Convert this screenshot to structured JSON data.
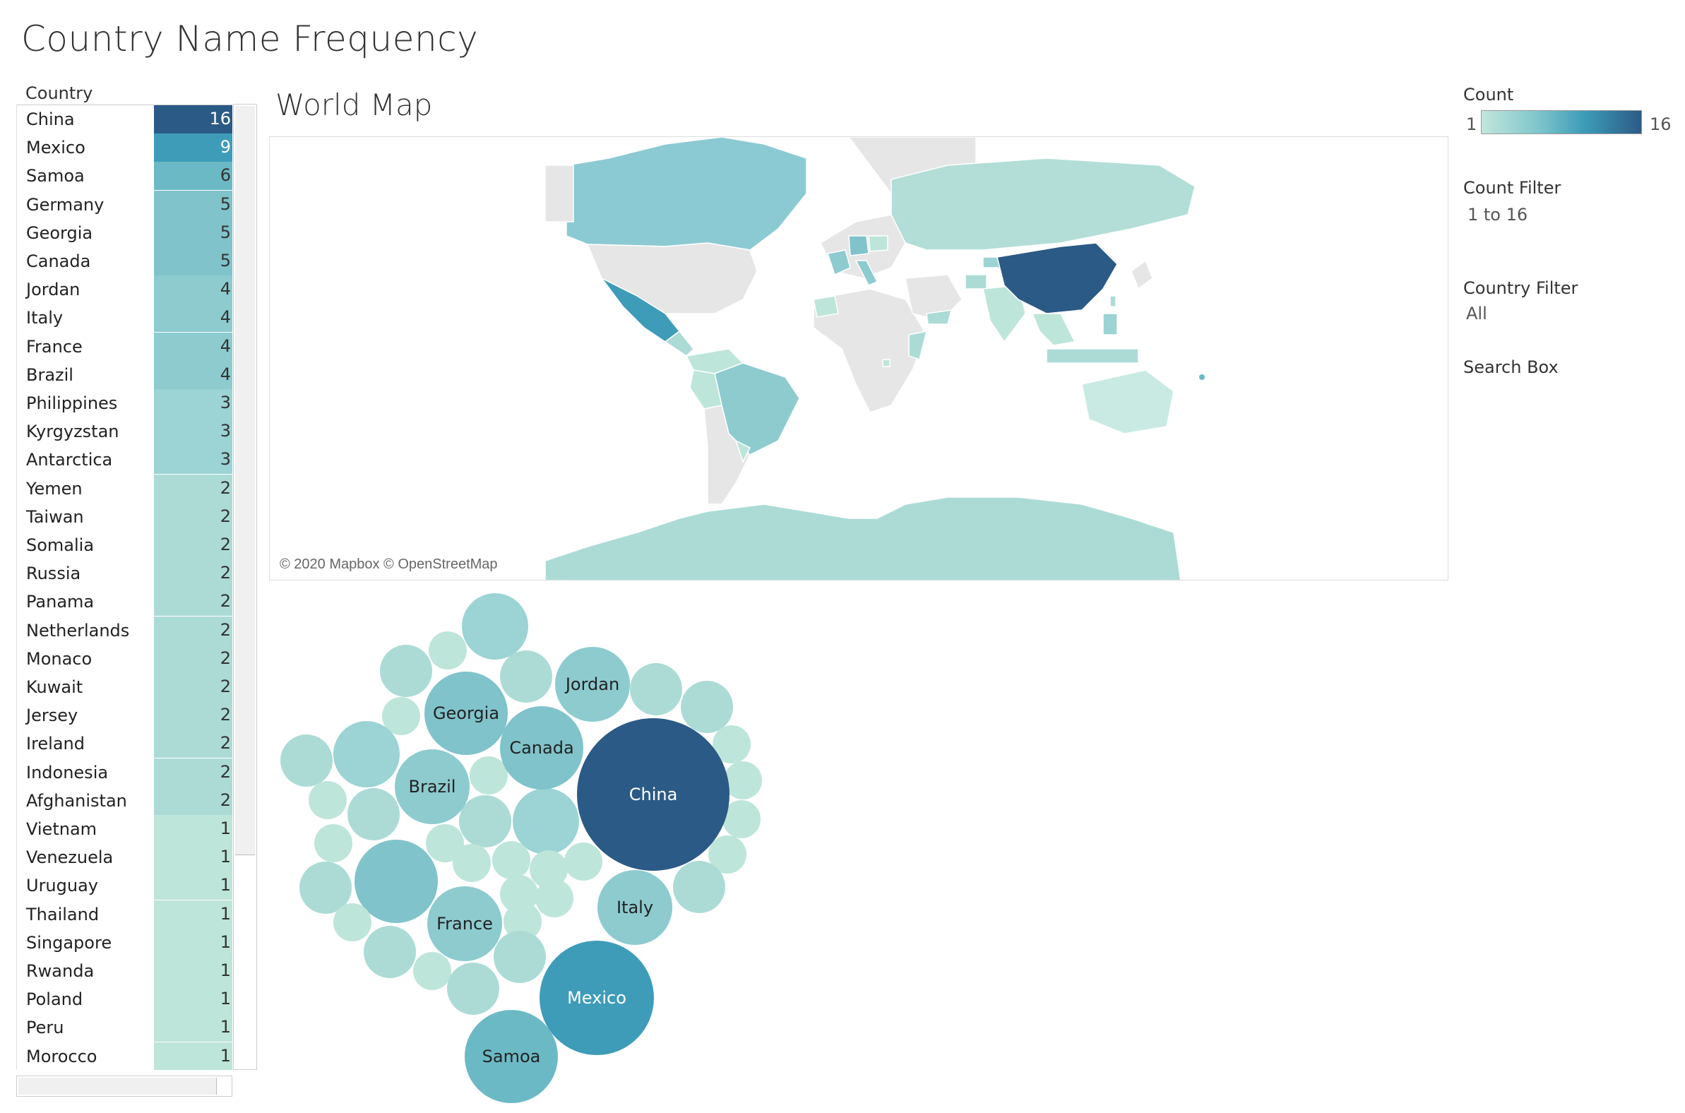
{
  "title": "Country Name Frequency",
  "table": {
    "header": "Country",
    "rows": [
      {
        "name": "China",
        "count": 16,
        "color": "#2c5a86",
        "text": "#ffffff"
      },
      {
        "name": "Mexico",
        "count": 9,
        "color": "#3e9cb9",
        "text": "#ffffff"
      },
      {
        "name": "Samoa",
        "count": 6,
        "color": "#6cb9c6",
        "text": "#333333"
      },
      {
        "name": "Germany",
        "count": 5,
        "color": "#80c3cb",
        "text": "#333333"
      },
      {
        "name": "Georgia",
        "count": 5,
        "color": "#80c3cb",
        "text": "#333333"
      },
      {
        "name": "Canada",
        "count": 5,
        "color": "#80c3cb",
        "text": "#333333"
      },
      {
        "name": "Jordan",
        "count": 4,
        "color": "#8dcbcf",
        "text": "#333333"
      },
      {
        "name": "Italy",
        "count": 4,
        "color": "#8dcbcf",
        "text": "#333333"
      },
      {
        "name": "France",
        "count": 4,
        "color": "#8dcbcf",
        "text": "#333333"
      },
      {
        "name": "Brazil",
        "count": 4,
        "color": "#8dcbcf",
        "text": "#333333"
      },
      {
        "name": "Philippines",
        "count": 3,
        "color": "#9cd3d4",
        "text": "#333333"
      },
      {
        "name": "Kyrgyzstan",
        "count": 3,
        "color": "#9cd3d4",
        "text": "#333333"
      },
      {
        "name": "Antarctica",
        "count": 3,
        "color": "#9cd3d4",
        "text": "#333333"
      },
      {
        "name": "Yemen",
        "count": 2,
        "color": "#acdbd6",
        "text": "#333333"
      },
      {
        "name": "Taiwan",
        "count": 2,
        "color": "#acdbd6",
        "text": "#333333"
      },
      {
        "name": "Somalia",
        "count": 2,
        "color": "#acdbd6",
        "text": "#333333"
      },
      {
        "name": "Russia",
        "count": 2,
        "color": "#acdbd6",
        "text": "#333333"
      },
      {
        "name": "Panama",
        "count": 2,
        "color": "#acdbd6",
        "text": "#333333"
      },
      {
        "name": "Netherlands",
        "count": 2,
        "color": "#acdbd6",
        "text": "#333333"
      },
      {
        "name": "Monaco",
        "count": 2,
        "color": "#acdbd6",
        "text": "#333333"
      },
      {
        "name": "Kuwait",
        "count": 2,
        "color": "#acdbd6",
        "text": "#333333"
      },
      {
        "name": "Jersey",
        "count": 2,
        "color": "#acdbd6",
        "text": "#333333"
      },
      {
        "name": "Ireland",
        "count": 2,
        "color": "#acdbd6",
        "text": "#333333"
      },
      {
        "name": "Indonesia",
        "count": 2,
        "color": "#acdbd6",
        "text": "#333333"
      },
      {
        "name": "Afghanistan",
        "count": 2,
        "color": "#acdbd6",
        "text": "#333333"
      },
      {
        "name": "Vietnam",
        "count": 1,
        "color": "#bee5da",
        "text": "#333333"
      },
      {
        "name": "Venezuela",
        "count": 1,
        "color": "#bee5da",
        "text": "#333333"
      },
      {
        "name": "Uruguay",
        "count": 1,
        "color": "#bee5da",
        "text": "#333333"
      },
      {
        "name": "Thailand",
        "count": 1,
        "color": "#bee5da",
        "text": "#333333"
      },
      {
        "name": "Singapore",
        "count": 1,
        "color": "#bee5da",
        "text": "#333333"
      },
      {
        "name": "Rwanda",
        "count": 1,
        "color": "#bee5da",
        "text": "#333333"
      },
      {
        "name": "Poland",
        "count": 1,
        "color": "#bee5da",
        "text": "#333333"
      },
      {
        "name": "Peru",
        "count": 1,
        "color": "#bee5da",
        "text": "#333333"
      },
      {
        "name": "Morocco",
        "count": 1,
        "color": "#bee5da",
        "text": "#333333"
      }
    ]
  },
  "map": {
    "title": "World Map",
    "attribution": "© 2020 Mapbox © OpenStreetMap"
  },
  "legend": {
    "count_label": "Count",
    "min": "1",
    "max": "16",
    "count_filter_label": "Count Filter",
    "count_filter_value": "1 to 16",
    "country_filter_label": "Country Filter",
    "country_filter_value": "All",
    "search_label": "Search Box"
  },
  "bubbles": {
    "labels": {
      "china": "China",
      "mexico": "Mexico",
      "samoa": "Samoa",
      "georgia": "Georgia",
      "canada": "Canada",
      "jordan": "Jordan",
      "brazil": "Brazil",
      "italy": "Italy",
      "france": "France"
    }
  }
}
